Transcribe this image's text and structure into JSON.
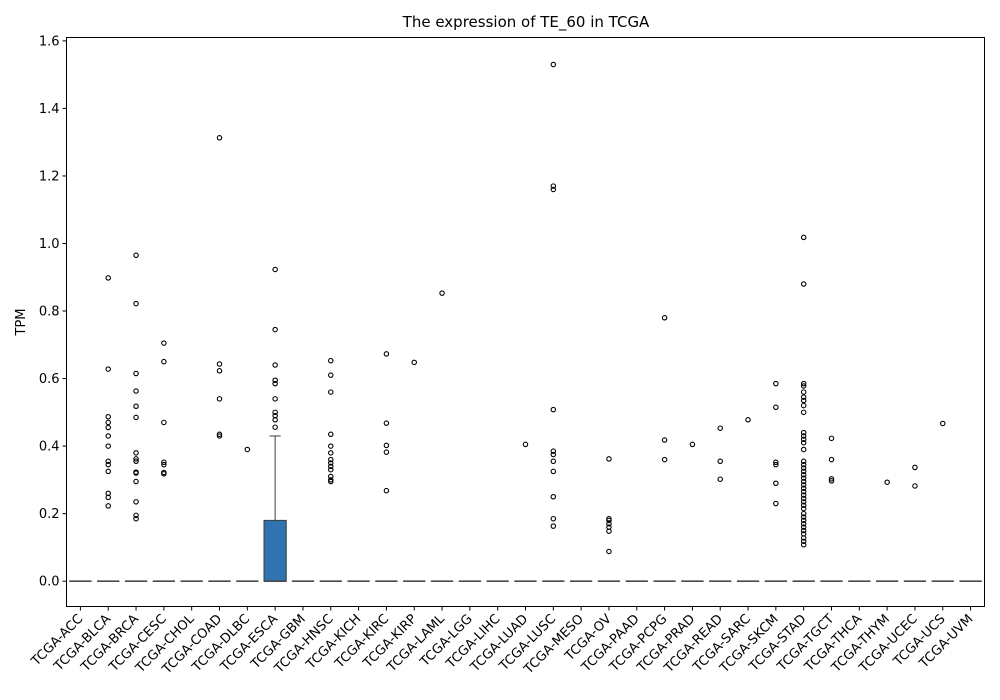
{
  "chart_data": {
    "type": "box",
    "title": "The expression of TE_60 in TCGA",
    "xlabel": "",
    "ylabel": "TPM",
    "ylim": [
      -0.075,
      1.61
    ],
    "yticks": [
      0.0,
      0.2,
      0.4,
      0.6,
      0.8,
      1.0,
      1.2,
      1.4,
      1.6
    ],
    "ytick_labels": [
      "0.0",
      "0.2",
      "0.4",
      "0.6",
      "0.8",
      "1.0",
      "1.2",
      "1.4",
      "1.6"
    ],
    "grid": false,
    "legend": "none",
    "box_color": "#2f74b0",
    "categories": [
      "TCGA-ACC",
      "TCGA-BLCA",
      "TCGA-BRCA",
      "TCGA-CESC",
      "TCGA-CHOL",
      "TCGA-COAD",
      "TCGA-DLBC",
      "TCGA-ESCA",
      "TCGA-GBM",
      "TCGA-HNSC",
      "TCGA-KICH",
      "TCGA-KIRC",
      "TCGA-KIRP",
      "TCGA-LAML",
      "TCGA-LGG",
      "TCGA-LIHC",
      "TCGA-LUAD",
      "TCGA-LUSC",
      "TCGA-MESO",
      "TCGA-OV",
      "TCGA-PAAD",
      "TCGA-PCPG",
      "TCGA-PRAD",
      "TCGA-READ",
      "TCGA-SARC",
      "TCGA-SKCM",
      "TCGA-STAD",
      "TCGA-TGCT",
      "TCGA-THCA",
      "TCGA-THYM",
      "TCGA-UCEC",
      "TCGA-UCS",
      "TCGA-UVM"
    ],
    "boxes": [
      {
        "q1": 0,
        "median": 0,
        "q3": 0,
        "whisker_low": 0,
        "whisker_high": 0,
        "outliers": []
      },
      {
        "q1": 0,
        "median": 0,
        "q3": 0,
        "whisker_low": 0,
        "whisker_high": 0,
        "outliers": [
          0.898,
          0.628,
          0.487,
          0.47,
          0.455,
          0.43,
          0.4,
          0.355,
          0.345,
          0.325,
          0.26,
          0.248,
          0.223
        ]
      },
      {
        "q1": 0,
        "median": 0,
        "q3": 0,
        "whisker_low": 0,
        "whisker_high": 0,
        "outliers": [
          0.965,
          0.822,
          0.615,
          0.563,
          0.518,
          0.485,
          0.38,
          0.362,
          0.355,
          0.323,
          0.32,
          0.295,
          0.235,
          0.195,
          0.185
        ]
      },
      {
        "q1": 0,
        "median": 0,
        "q3": 0,
        "whisker_low": 0,
        "whisker_high": 0,
        "outliers": [
          0.705,
          0.65,
          0.47,
          0.352,
          0.345,
          0.322,
          0.318
        ]
      },
      {
        "q1": 0,
        "median": 0,
        "q3": 0,
        "whisker_low": 0,
        "whisker_high": 0,
        "outliers": []
      },
      {
        "q1": 0,
        "median": 0,
        "q3": 0,
        "whisker_low": 0,
        "whisker_high": 0,
        "outliers": [
          1.313,
          0.643,
          0.623,
          0.54,
          0.435,
          0.43
        ]
      },
      {
        "q1": 0,
        "median": 0,
        "q3": 0,
        "whisker_low": 0,
        "whisker_high": 0,
        "outliers": [
          0.39
        ]
      },
      {
        "q1": 0,
        "median": 0,
        "q3": 0.18,
        "whisker_low": 0,
        "whisker_high": 0.43,
        "outliers": [
          0.923,
          0.745,
          0.64,
          0.595,
          0.585,
          0.54,
          0.5,
          0.49,
          0.478,
          0.456
        ]
      },
      {
        "q1": 0,
        "median": 0,
        "q3": 0,
        "whisker_low": 0,
        "whisker_high": 0,
        "outliers": []
      },
      {
        "q1": 0,
        "median": 0,
        "q3": 0,
        "whisker_low": 0,
        "whisker_high": 0,
        "outliers": [
          0.653,
          0.61,
          0.56,
          0.435,
          0.4,
          0.38,
          0.36,
          0.35,
          0.34,
          0.33,
          0.31,
          0.3,
          0.295
        ]
      },
      {
        "q1": 0,
        "median": 0,
        "q3": 0,
        "whisker_low": 0,
        "whisker_high": 0,
        "outliers": []
      },
      {
        "q1": 0,
        "median": 0,
        "q3": 0,
        "whisker_low": 0,
        "whisker_high": 0,
        "outliers": [
          0.673,
          0.468,
          0.402,
          0.382,
          0.268
        ]
      },
      {
        "q1": 0,
        "median": 0,
        "q3": 0,
        "whisker_low": 0,
        "whisker_high": 0,
        "outliers": [
          0.648
        ]
      },
      {
        "q1": 0,
        "median": 0,
        "q3": 0,
        "whisker_low": 0,
        "whisker_high": 0,
        "outliers": [
          0.853
        ]
      },
      {
        "q1": 0,
        "median": 0,
        "q3": 0,
        "whisker_low": 0,
        "whisker_high": 0,
        "outliers": []
      },
      {
        "q1": 0,
        "median": 0,
        "q3": 0,
        "whisker_low": 0,
        "whisker_high": 0,
        "outliers": []
      },
      {
        "q1": 0,
        "median": 0,
        "q3": 0,
        "whisker_low": 0,
        "whisker_high": 0,
        "outliers": [
          0.405
        ]
      },
      {
        "q1": 0,
        "median": 0,
        "q3": 0,
        "whisker_low": 0,
        "whisker_high": 0,
        "outliers": [
          1.53,
          1.17,
          1.16,
          0.508,
          0.385,
          0.375,
          0.355,
          0.325,
          0.25,
          0.185,
          0.163
        ]
      },
      {
        "q1": 0,
        "median": 0,
        "q3": 0,
        "whisker_low": 0,
        "whisker_high": 0,
        "outliers": []
      },
      {
        "q1": 0,
        "median": 0,
        "q3": 0,
        "whisker_low": 0,
        "whisker_high": 0,
        "outliers": [
          0.362,
          0.185,
          0.18,
          0.17,
          0.16,
          0.148,
          0.088
        ]
      },
      {
        "q1": 0,
        "median": 0,
        "q3": 0,
        "whisker_low": 0,
        "whisker_high": 0,
        "outliers": []
      },
      {
        "q1": 0,
        "median": 0,
        "q3": 0,
        "whisker_low": 0,
        "whisker_high": 0,
        "outliers": [
          0.78,
          0.418,
          0.36
        ]
      },
      {
        "q1": 0,
        "median": 0,
        "q3": 0,
        "whisker_low": 0,
        "whisker_high": 0,
        "outliers": [
          0.405
        ]
      },
      {
        "q1": 0,
        "median": 0,
        "q3": 0,
        "whisker_low": 0,
        "whisker_high": 0,
        "outliers": [
          0.453,
          0.355,
          0.302
        ]
      },
      {
        "q1": 0,
        "median": 0,
        "q3": 0,
        "whisker_low": 0,
        "whisker_high": 0,
        "outliers": [
          0.478
        ]
      },
      {
        "q1": 0,
        "median": 0,
        "q3": 0,
        "whisker_low": 0,
        "whisker_high": 0,
        "outliers": [
          0.585,
          0.515,
          0.352,
          0.345,
          0.29,
          0.23
        ]
      },
      {
        "q1": 0,
        "median": 0,
        "q3": 0,
        "whisker_low": 0,
        "whisker_high": 0,
        "outliers": [
          1.018,
          0.88,
          0.585,
          0.578,
          0.56,
          0.545,
          0.535,
          0.52,
          0.5,
          0.44,
          0.43,
          0.42,
          0.41,
          0.39,
          0.355,
          0.345,
          0.335,
          0.325,
          0.315,
          0.305,
          0.295,
          0.285,
          0.275,
          0.265,
          0.255,
          0.245,
          0.235,
          0.225,
          0.215,
          0.2,
          0.19,
          0.18,
          0.17,
          0.16,
          0.15,
          0.14,
          0.128,
          0.118,
          0.108
        ]
      },
      {
        "q1": 0,
        "median": 0,
        "q3": 0,
        "whisker_low": 0,
        "whisker_high": 0,
        "outliers": [
          0.423,
          0.36,
          0.303,
          0.297
        ]
      },
      {
        "q1": 0,
        "median": 0,
        "q3": 0,
        "whisker_low": 0,
        "whisker_high": 0,
        "outliers": []
      },
      {
        "q1": 0,
        "median": 0,
        "q3": 0,
        "whisker_low": 0,
        "whisker_high": 0,
        "outliers": [
          0.293
        ]
      },
      {
        "q1": 0,
        "median": 0,
        "q3": 0,
        "whisker_low": 0,
        "whisker_high": 0,
        "outliers": [
          0.337,
          0.282
        ]
      },
      {
        "q1": 0,
        "median": 0,
        "q3": 0,
        "whisker_low": 0,
        "whisker_high": 0,
        "outliers": [
          0.467
        ]
      },
      {
        "q1": 0,
        "median": 0,
        "q3": 0,
        "whisker_low": 0,
        "whisker_high": 0,
        "outliers": []
      }
    ]
  }
}
